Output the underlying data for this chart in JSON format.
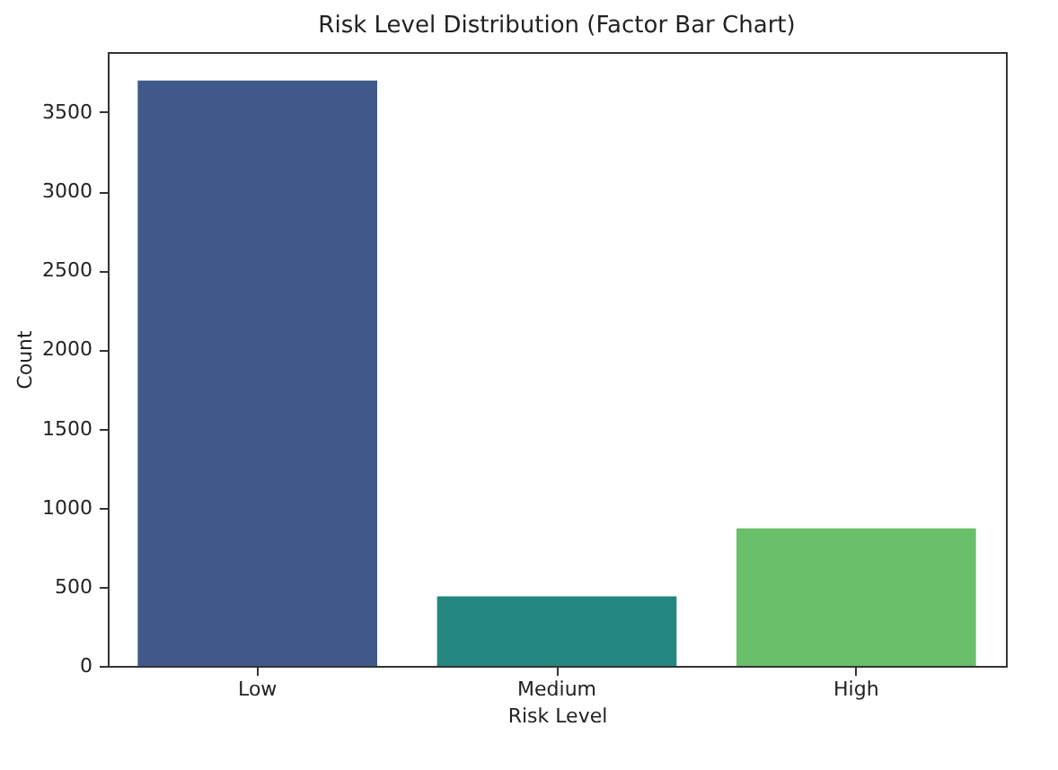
{
  "chart_data": {
    "type": "bar",
    "title": "Risk Level Distribution (Factor Bar Chart)",
    "xlabel": "Risk Level",
    "ylabel": "Count",
    "categories": [
      "Low",
      "Medium",
      "High"
    ],
    "values": [
      3700,
      440,
      870
    ],
    "colors": [
      "#3f5a8a",
      "#23877f",
      "#6abf69"
    ],
    "ylim": [
      0,
      3880
    ],
    "yticks": [
      0,
      500,
      1000,
      1500,
      2000,
      2500,
      3000,
      3500
    ],
    "grid": false,
    "legend": false
  }
}
